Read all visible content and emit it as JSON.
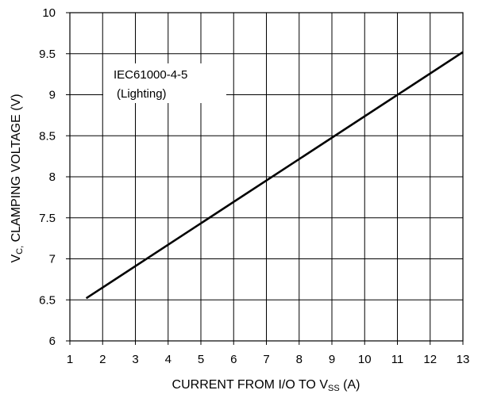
{
  "chart_data": {
    "type": "line",
    "title": "",
    "xlabel": {
      "prefix": "CURRENT FROM I/O TO V",
      "subscript": "SS",
      "suffix": " (A)"
    },
    "ylabel": {
      "prefix": "V",
      "subscript": "C,",
      "suffix": " CLAMPING VOLTAGE  (V)"
    },
    "xlim": [
      1,
      13
    ],
    "ylim": [
      6,
      10
    ],
    "xticks": [
      1,
      2,
      3,
      4,
      5,
      6,
      7,
      8,
      9,
      10,
      11,
      12,
      13
    ],
    "yticks": [
      6,
      6.5,
      7,
      7.5,
      8,
      8.5,
      9,
      9.5,
      10
    ],
    "xtick_labels": [
      "1",
      "2",
      "3",
      "4",
      "5",
      "6",
      "7",
      "8",
      "9",
      "10",
      "11",
      "12",
      "13"
    ],
    "ytick_labels": [
      "6",
      "6.5",
      "7",
      "7.5",
      "8",
      "8.5",
      "9",
      "9.5",
      "10"
    ],
    "grid": true,
    "annotation": [
      "IEC61000-4-5",
      "(Lighting)"
    ],
    "series": [
      {
        "x": [
          1.5,
          13
        ],
        "y": [
          6.52,
          9.52
        ],
        "color": "#000000"
      }
    ]
  }
}
